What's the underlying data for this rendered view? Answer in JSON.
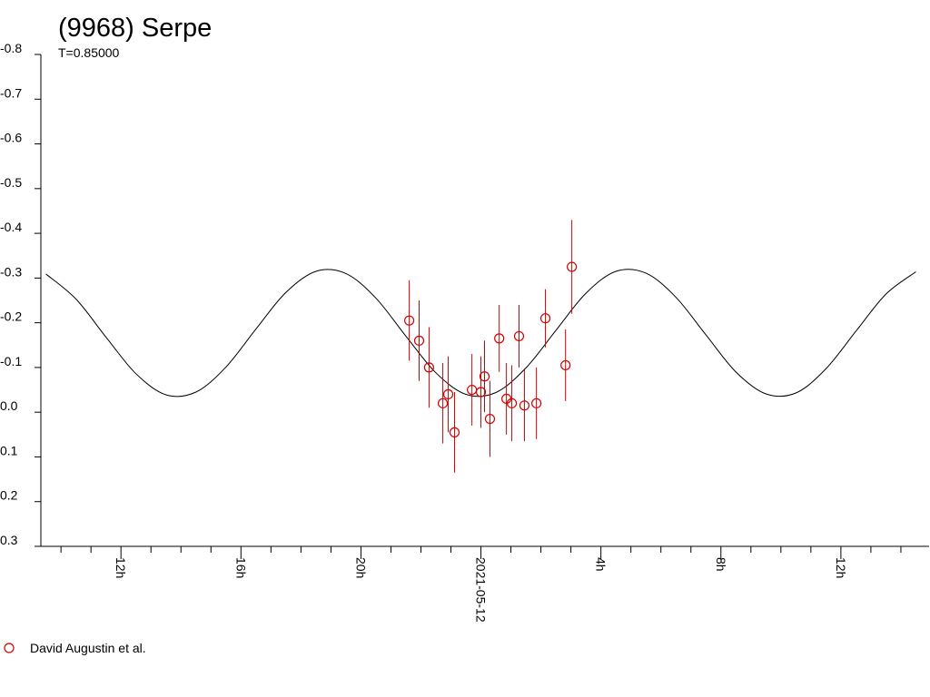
{
  "chart_data": {
    "type": "lightcurve",
    "title": "(9968) Serpe",
    "subtitle": "T=0.85000",
    "xlim": [
      -14.67,
      14.94
    ],
    "xticks": [
      {
        "value": -12,
        "label": "12h"
      },
      {
        "value": -8,
        "label": "16h"
      },
      {
        "value": -4,
        "label": "20h"
      },
      {
        "value": 0,
        "label": "2021-05-12"
      },
      {
        "value": 4,
        "label": "4h"
      },
      {
        "value": 8,
        "label": "8h"
      },
      {
        "value": 12,
        "label": "12h"
      }
    ],
    "xminor_ticks": [
      -14,
      -13,
      -11,
      -10,
      -9,
      -7,
      -6,
      -5,
      -3,
      -2,
      -1,
      1,
      2,
      3,
      5,
      6,
      7,
      9,
      10,
      11,
      13,
      14
    ],
    "ylim": [
      -0.8,
      0.3
    ],
    "y_inverted": true,
    "yticks": [
      -0.8,
      -0.7,
      -0.6,
      -0.5,
      -0.4,
      -0.3,
      -0.2,
      -0.1,
      {
        "value": 0,
        "label": "0.0"
      },
      0.1,
      0.2,
      0.3
    ],
    "series": [
      {
        "name": "David Augustin et al.",
        "color": "#d40000",
        "marker": "circle",
        "x": [
          -2.39,
          -2.06,
          -1.73,
          -1.27,
          -1.09,
          -0.88,
          -0.3,
          0.0,
          0.12,
          0.3,
          0.61,
          0.85,
          1.03,
          1.27,
          1.45,
          1.85,
          2.15,
          2.82,
          3.03
        ],
        "values": [
          -0.205,
          -0.16,
          -0.1,
          -0.02,
          -0.04,
          0.045,
          -0.05,
          -0.045,
          -0.08,
          0.015,
          -0.165,
          -0.03,
          -0.02,
          -0.17,
          -0.015,
          -0.02,
          -0.21,
          -0.105,
          -0.325
        ],
        "errors": [
          0.09,
          0.09,
          0.09,
          0.09,
          0.085,
          0.09,
          0.08,
          0.08,
          0.08,
          0.085,
          0.075,
          0.08,
          0.085,
          0.07,
          0.08,
          0.08,
          0.065,
          0.08,
          0.105
        ]
      }
    ],
    "fit": {
      "color": "#000000",
      "x": [
        -14.5,
        -13.5,
        -12.5,
        -11.5,
        -10.5,
        -9.5,
        -8.5,
        -7.5,
        -6.5,
        -5.5,
        -4.5,
        -3.5,
        -2.5,
        -1.5,
        -0.5,
        0.5,
        1.5,
        2.5,
        3.5,
        4.5,
        5.5,
        6.5,
        7.5,
        8.5,
        9.5,
        10.5,
        11.5,
        12.5,
        13.5,
        14.5
      ],
      "values": [
        -0.309,
        -0.253,
        -0.168,
        -0.086,
        -0.039,
        -0.045,
        -0.101,
        -0.186,
        -0.268,
        -0.315,
        -0.31,
        -0.255,
        -0.17,
        -0.088,
        -0.04,
        -0.044,
        -0.099,
        -0.183,
        -0.266,
        -0.315,
        -0.311,
        -0.257,
        -0.173,
        -0.09,
        -0.041,
        -0.043,
        -0.097,
        -0.181,
        -0.264,
        -0.314
      ]
    }
  }
}
